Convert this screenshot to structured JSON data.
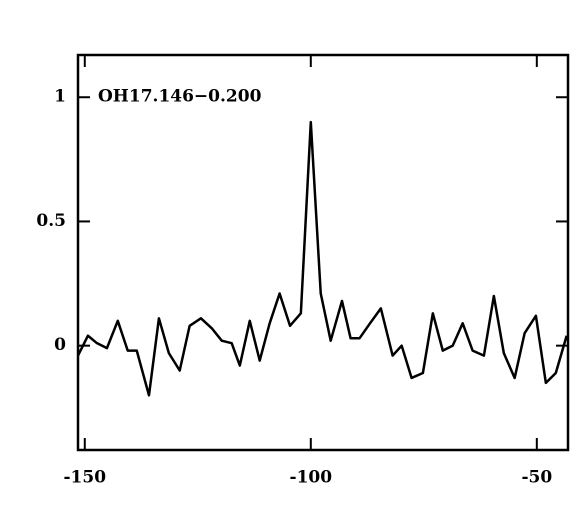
{
  "chart_data": {
    "type": "line",
    "annotation": "OH17.146−0.200",
    "x": [
      -151.5,
      -149.3,
      -147.3,
      -145.1,
      -142.7,
      -140.5,
      -138.5,
      -135.8,
      -133.6,
      -131.4,
      -129.0,
      -126.8,
      -124.3,
      -121.9,
      -119.7,
      -117.5,
      -115.7,
      -113.5,
      -111.3,
      -109.1,
      -106.9,
      -104.6,
      -102.2,
      -100.0,
      -97.8,
      -95.6,
      -93.1,
      -91.2,
      -89.2,
      -86.9,
      -84.5,
      -81.9,
      -79.9,
      -77.7,
      -75.2,
      -73.0,
      -70.8,
      -68.6,
      -66.4,
      -64.2,
      -61.7,
      -59.5,
      -57.3,
      -54.9,
      -52.7,
      -50.2,
      -48.0,
      -45.8,
      -43.4
    ],
    "values": [
      -0.04,
      0.04,
      0.01,
      -0.01,
      0.1,
      -0.02,
      -0.02,
      -0.2,
      0.11,
      -0.03,
      -0.1,
      0.08,
      0.11,
      0.07,
      0.02,
      0.01,
      -0.08,
      0.1,
      -0.06,
      0.09,
      0.21,
      0.08,
      0.13,
      0.9,
      0.21,
      0.02,
      0.18,
      0.03,
      0.03,
      0.09,
      0.15,
      -0.04,
      0,
      -0.13,
      -0.11,
      0.13,
      -0.02,
      0,
      0.09,
      -0.02,
      -0.04,
      0.2,
      -0.03,
      -0.13,
      0.05,
      0.12,
      -0.15,
      -0.11,
      0.04
    ],
    "color": "#000000",
    "xlim": [
      -151.5,
      -43.1
    ],
    "ylim": [
      -0.42,
      1.17
    ],
    "xticks": [
      -150,
      -100,
      -50
    ],
    "yticks": [
      0,
      0.5,
      1
    ]
  }
}
